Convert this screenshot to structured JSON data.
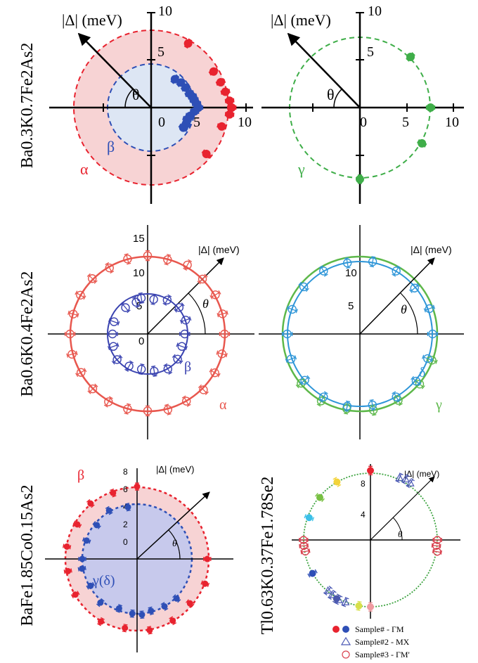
{
  "colors": {
    "red": "#e8232f",
    "blue": "#2e4fb6",
    "green": "#3fae49",
    "salmon": "#e8574e",
    "navy": "#3a43b0",
    "teal": "#2f96d8",
    "lightgreen": "#5db84a",
    "pink_fill": "#f7d3d4",
    "lavender_fill": "#c7c9ec",
    "lightblue_fill": "#dde6f4"
  },
  "rows": [
    {
      "compound": "Ba0.3K0.7Fe2As2"
    },
    {
      "compound": "Ba0.6K0.4Fe2As2"
    },
    {
      "compound": "BaFe1.85Co0.15As2"
    },
    {
      "compound": "Tl0.63K0.37Fe1.78Se2"
    }
  ],
  "chart_data": [
    {
      "type": "scatter",
      "subtype": "polar",
      "axis_label": "|Δ| (meV)",
      "angle_label": "θ",
      "ticks": [
        "0",
        "5",
        "10",
        "5",
        "10"
      ],
      "rlim": [
        0,
        10
      ],
      "series": [
        {
          "name": "α",
          "color": "#e8232f",
          "radius": 7.5,
          "points": [
            [
              60,
              7.8
            ],
            [
              30,
              7.6
            ],
            [
              20,
              7.8
            ],
            [
              12,
              8.0
            ],
            [
              5,
              8.3
            ],
            [
              0,
              8.5
            ],
            [
              -5,
              8.3
            ],
            [
              -15,
              7.7
            ],
            [
              -40,
              7.6
            ]
          ]
        },
        {
          "name": "β",
          "color": "#2e4fb6",
          "radius": 4.0,
          "points": [
            [
              50,
              3.9
            ],
            [
              40,
              4.1
            ],
            [
              30,
              4.2
            ],
            [
              20,
              4.3
            ],
            [
              15,
              4.5
            ],
            [
              10,
              4.6
            ],
            [
              5,
              4.8
            ],
            [
              0,
              5.0
            ],
            [
              -5,
              4.6
            ],
            [
              -12,
              4.2
            ],
            [
              -18,
              4.0
            ],
            [
              -25,
              4.1
            ],
            [
              -32,
              4.0
            ]
          ]
        }
      ]
    },
    {
      "type": "scatter",
      "subtype": "polar",
      "axis_label": "|Δ| (meV)",
      "angle_label": "θ",
      "ticks": [
        "0",
        "5",
        "10",
        "5",
        "10"
      ],
      "rlim": [
        0,
        10
      ],
      "series": [
        {
          "name": "γ",
          "color": "#3fae49",
          "radius": 7.5,
          "points": [
            [
              45,
              7.6
            ],
            [
              0,
              7.5
            ],
            [
              -30,
              7.6
            ],
            [
              -90,
              7.6
            ]
          ]
        }
      ]
    },
    {
      "type": "scatter",
      "subtype": "polar",
      "axis_label": "|Δ| (meV)",
      "angle_label": "θ",
      "ticks": [
        "0",
        "5",
        "10",
        "15"
      ],
      "rlim": [
        0,
        15
      ],
      "series": [
        {
          "name": "α",
          "color": "#e8574e",
          "radius": 11.5,
          "points": [
            [
              0,
              11.4
            ],
            [
              15,
              11.5
            ],
            [
              30,
              11.6
            ],
            [
              45,
              11.5
            ],
            [
              60,
              11.8
            ],
            [
              75,
              11.4
            ],
            [
              90,
              11.6
            ],
            [
              105,
              11.5
            ],
            [
              120,
              11.3
            ],
            [
              135,
              11.6
            ],
            [
              150,
              11.5
            ],
            [
              165,
              11.4
            ],
            [
              180,
              11.5
            ],
            [
              195,
              11.6
            ],
            [
              210,
              11.4
            ],
            [
              225,
              11.5
            ],
            [
              240,
              11.6
            ],
            [
              255,
              11.5
            ],
            [
              270,
              11.4
            ],
            [
              285,
              11.6
            ],
            [
              300,
              11.5
            ],
            [
              315,
              11.7
            ],
            [
              330,
              11.5
            ],
            [
              345,
              11.4
            ]
          ]
        },
        {
          "name": "β",
          "color": "#3a43b0",
          "radius": 5.8,
          "points": [
            [
              80,
              5.2
            ],
            [
              60,
              5.8
            ],
            [
              40,
              6.1
            ],
            [
              20,
              6.0
            ],
            [
              0,
              5.5
            ],
            [
              -20,
              5.4
            ],
            [
              -40,
              5.8
            ],
            [
              -60,
              6.0
            ],
            [
              -80,
              5.6
            ],
            [
              -100,
              5.3
            ],
            [
              -120,
              5.5
            ],
            [
              -140,
              5.9
            ],
            [
              -160,
              5.4
            ],
            [
              -180,
              5.2
            ],
            [
              160,
              5.3
            ],
            [
              130,
              5.1
            ],
            [
              110,
              5.0
            ],
            [
              100,
              5.4
            ]
          ]
        }
      ]
    },
    {
      "type": "scatter",
      "subtype": "polar",
      "axis_label": "|Δ| (meV)",
      "angle_label": "θ",
      "ticks": [
        "5",
        "10"
      ],
      "rlim": [
        0,
        15
      ],
      "series": [
        {
          "name": "γ",
          "color": "#5db84a",
          "radius": 11.7,
          "points": [
            [
              -20,
              11.6
            ],
            [
              -40,
              11.8
            ],
            [
              -60,
              11.6
            ],
            [
              -80,
              11.7
            ],
            [
              -100,
              11.5
            ],
            [
              -120,
              11.7
            ],
            [
              -140,
              11.6
            ]
          ]
        },
        {
          "name": "δ",
          "color": "#2f96d8",
          "radius": 11.0,
          "points": [
            [
              0,
              11.0
            ],
            [
              20,
              11.2
            ],
            [
              40,
              10.8
            ],
            [
              60,
              11.0
            ],
            [
              80,
              11.1
            ],
            [
              100,
              10.9
            ],
            [
              120,
              11.0
            ],
            [
              140,
              11.1
            ],
            [
              160,
              10.9
            ],
            [
              180,
              11.0
            ],
            [
              200,
              11.1
            ],
            [
              220,
              10.9
            ],
            [
              240,
              11.0
            ],
            [
              260,
              11.1
            ],
            [
              280,
              10.9
            ],
            [
              300,
              11.0
            ],
            [
              320,
              11.1
            ],
            [
              340,
              10.9
            ]
          ]
        }
      ]
    },
    {
      "type": "scatter",
      "subtype": "polar",
      "axis_label": "|Δ| (meV)",
      "angle_label": "θ",
      "ticks": [
        "0",
        "2",
        "4",
        "6",
        "8"
      ],
      "rlim": [
        0,
        8
      ],
      "series": [
        {
          "name": "β",
          "color": "#e8232f",
          "radius": 6.5,
          "points": [
            [
              90,
              6.6
            ],
            [
              110,
              6.4
            ],
            [
              130,
              6.6
            ],
            [
              150,
              6.3
            ],
            [
              170,
              6.5
            ],
            [
              190,
              6.4
            ],
            [
              -20,
              6.6
            ],
            [
              -40,
              6.3
            ],
            [
              -60,
              6.5
            ],
            [
              -80,
              6.6
            ],
            [
              -100,
              6.4
            ],
            [
              -120,
              6.6
            ],
            [
              -150,
              6.5
            ],
            [
              0,
              6.4
            ]
          ]
        },
        {
          "name": "γ(δ)",
          "color": "#2e4fb6",
          "radius": 5.0,
          "points": [
            [
              100,
              4.8
            ],
            [
              120,
              5.1
            ],
            [
              140,
              4.8
            ],
            [
              160,
              4.9
            ],
            [
              180,
              5.0
            ],
            [
              -170,
              5.1
            ],
            [
              -150,
              4.9
            ],
            [
              -130,
              5.2
            ],
            [
              -110,
              4.8
            ],
            [
              -95,
              5.0
            ],
            [
              -85,
              5.1
            ],
            [
              -75,
              4.9
            ],
            [
              -60,
              5.0
            ],
            [
              -45,
              5.1
            ]
          ]
        }
      ]
    },
    {
      "type": "scatter",
      "subtype": "polar",
      "axis_label": "|Δ| (meV)",
      "angle_label": "θ",
      "ticks": [
        "4",
        "8"
      ],
      "rlim": [
        0,
        10
      ],
      "legend": [
        {
          "label": "Sample# - ΓM",
          "marker": "filled-circle"
        },
        {
          "label": "Sample#2 - MX",
          "marker": "open-triangle"
        },
        {
          "label": "Sample#3 - ΓM'",
          "marker": "open-circle"
        }
      ],
      "series": [
        {
          "name": "Sample# - ΓM",
          "color": "#e8232f",
          "radius": 8.0,
          "points": [
            [
              90,
              8.3
            ],
            [
              120,
              8.0
            ],
            [
              140,
              7.9
            ],
            [
              160,
              7.8
            ],
            [
              -150,
              8.0
            ],
            [
              -120,
              8.1
            ],
            [
              -100,
              8.0
            ],
            [
              -90,
              8.0
            ]
          ],
          "point_colors": [
            "#e8232f",
            "#f3d33a",
            "#78c043",
            "#3cc0e8",
            "#2e4fb6",
            "#4d5aa8",
            "#d7e04a",
            "#f09aa0"
          ]
        },
        {
          "name": "Sample#2 - MX",
          "color": "#4a58b4",
          "radius": 8.0,
          "points": [
            [
              65,
              8.2
            ],
            [
              60,
              8.4
            ],
            [
              55,
              8.3
            ],
            [
              -125,
              8.0
            ],
            [
              -118,
              8.1
            ],
            [
              -112,
              8.0
            ],
            [
              -130,
              7.9
            ]
          ]
        },
        {
          "name": "Sample#3 - ΓM'",
          "color": "#d9424f",
          "radius": 8.0,
          "points": [
            [
              0,
              8.0
            ],
            [
              -5,
              7.9
            ],
            [
              -10,
              8.1
            ],
            [
              180,
              8.0
            ],
            [
              -175,
              8.0
            ],
            [
              -170,
              7.9
            ]
          ]
        }
      ]
    }
  ]
}
